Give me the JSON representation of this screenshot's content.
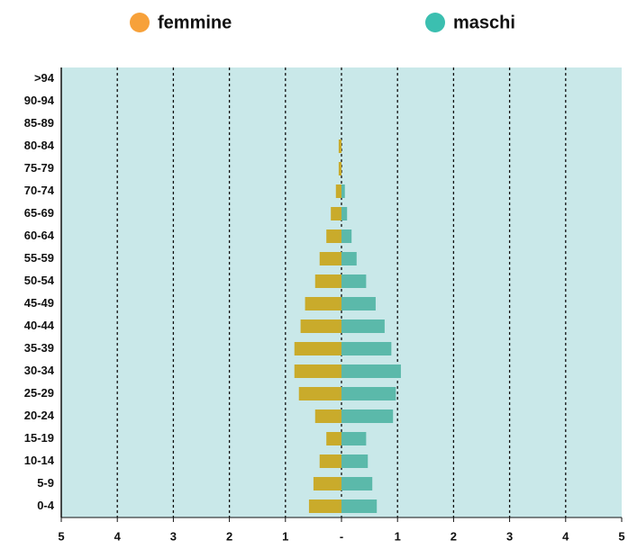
{
  "chart_data": {
    "type": "pyramid",
    "categories": [
      ">94",
      "90-94",
      "85-89",
      "80-84",
      "75-79",
      "70-74",
      "65-69",
      "60-64",
      "55-59",
      "50-54",
      "45-49",
      "40-44",
      "35-39",
      "30-34",
      "25-29",
      "20-24",
      "15-19",
      "10-14",
      "5-9",
      "0-4"
    ],
    "series": [
      {
        "name": "femmine",
        "color": "#c9ab2b",
        "legend_color": "#f7a13a",
        "side": "left",
        "values": [
          0,
          0,
          0,
          0.05,
          0.05,
          0.1,
          0.19,
          0.27,
          0.39,
          0.47,
          0.65,
          0.73,
          0.84,
          0.84,
          0.76,
          0.47,
          0.27,
          0.39,
          0.5,
          0.58
        ]
      },
      {
        "name": "maschi",
        "color": "#5bb9aa",
        "legend_color": "#3bbfb0",
        "side": "right",
        "values": [
          0,
          0,
          0,
          0,
          0,
          0.06,
          0.1,
          0.18,
          0.27,
          0.44,
          0.61,
          0.77,
          0.89,
          1.06,
          0.97,
          0.92,
          0.44,
          0.47,
          0.55,
          0.63
        ]
      }
    ],
    "xlim": [
      -5,
      5
    ],
    "xticks": [
      {
        "value": -5,
        "label": "5"
      },
      {
        "value": -4,
        "label": "4"
      },
      {
        "value": -3,
        "label": "3"
      },
      {
        "value": -2,
        "label": "2"
      },
      {
        "value": -1,
        "label": "1"
      },
      {
        "value": 0,
        "label": "-"
      },
      1,
      2,
      3,
      4,
      5
    ],
    "grid": true,
    "background": "#c9e8e9"
  }
}
